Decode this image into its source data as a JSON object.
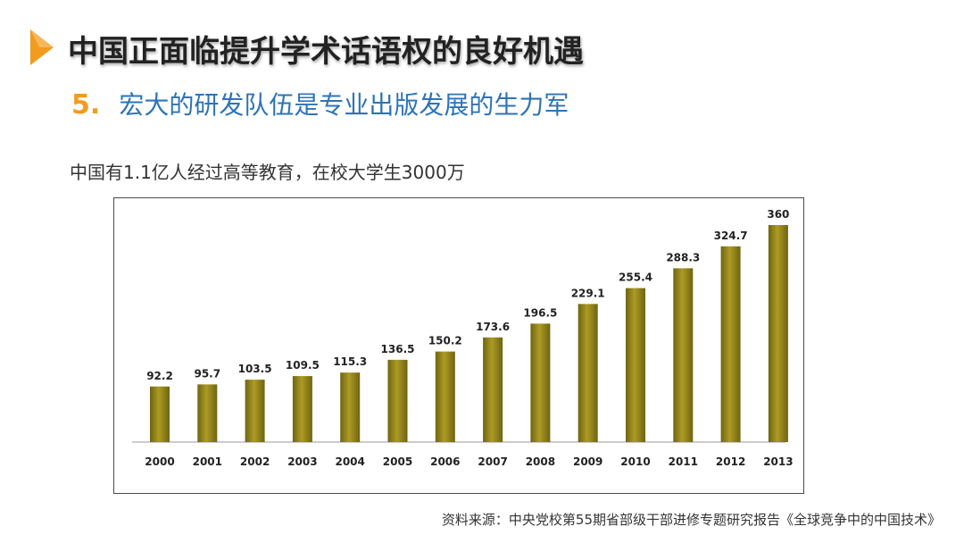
{
  "header": {
    "title": "中国正面临提升学术话语权的良好机遇",
    "icon": "play-arrow-icon",
    "accent_color": "#f39b1c"
  },
  "subtitle": {
    "number": "5.",
    "text": "宏大的研发队伍是专业出版发展的生力军",
    "color": "#2e74b5"
  },
  "intro": "中国有1.1亿人经过高等教育，在校大学生3000万",
  "chart_data": {
    "type": "bar",
    "categories": [
      "2000",
      "2001",
      "2002",
      "2003",
      "2004",
      "2005",
      "2006",
      "2007",
      "2008",
      "2009",
      "2010",
      "2011",
      "2012",
      "2013"
    ],
    "values": [
      92.2,
      95.7,
      103.5,
      109.5,
      115.3,
      136.5,
      150.2,
      173.6,
      196.5,
      229.1,
      255.4,
      288.3,
      324.7,
      360
    ],
    "value_labels": [
      "92.2",
      "95.7",
      "103.5",
      "109.5",
      "115.3",
      "136.5",
      "150.2",
      "173.6",
      "196.5",
      "229.1",
      "255.4",
      "288.3",
      "324.7",
      "360"
    ],
    "ylim": [
      0,
      360
    ],
    "grid": false,
    "legend": "none",
    "bar_color": "#9b8a1a"
  },
  "source": "资料来源：中央党校第55期省部级干部进修专题研究报告《全球竞争中的中国技术》"
}
